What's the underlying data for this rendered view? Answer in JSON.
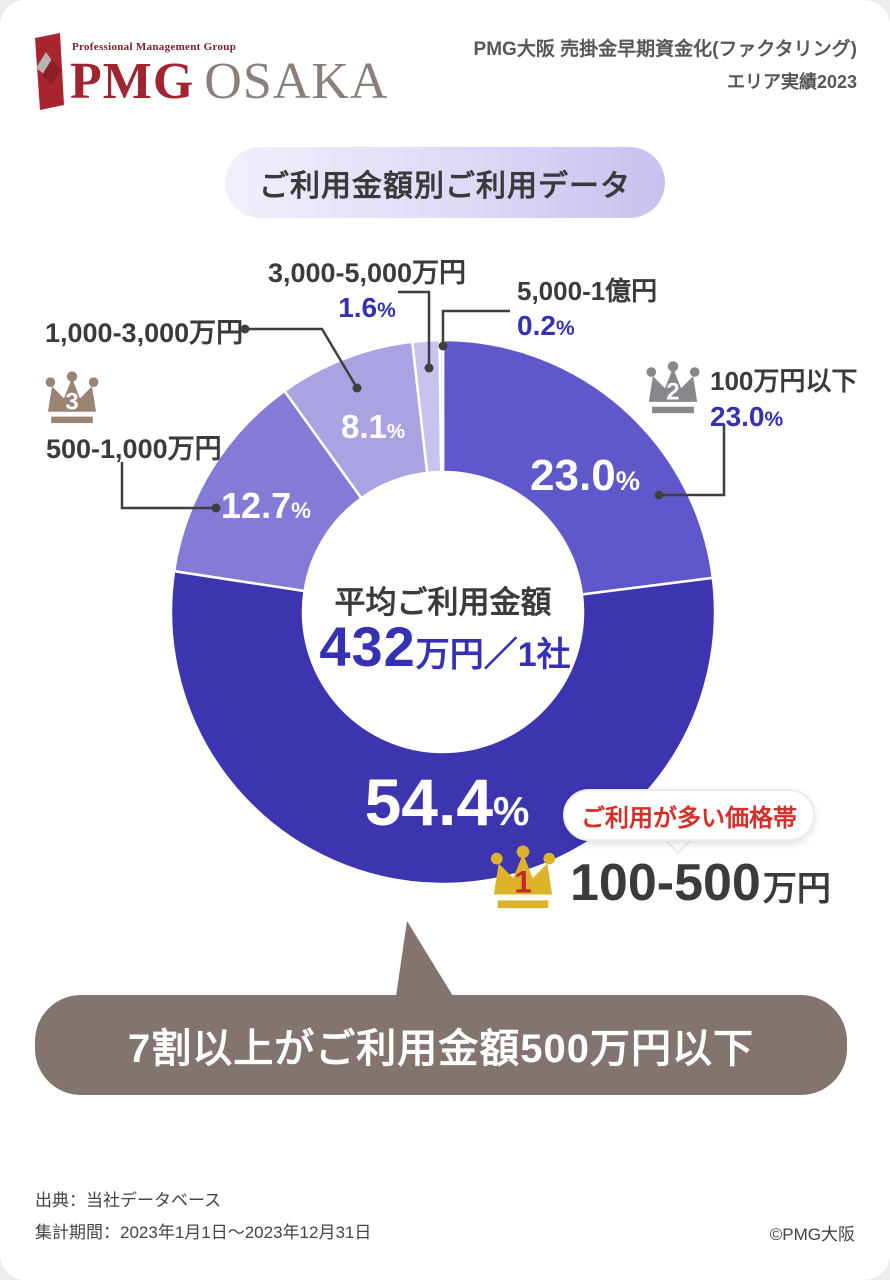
{
  "header": {
    "logo_small_text": "Professional Management Group",
    "logo_brand": "PMG",
    "logo_region": "OSAKA",
    "title_line1": "PMG大阪 売掛金早期資金化(ファクタリング)",
    "title_line2": "エリア実績2023"
  },
  "section_title": "ご利用金額別ご利用データ",
  "chart_data": {
    "type": "pie",
    "donut": true,
    "title": "ご利用金額別ご利用データ",
    "unit_sign": "%",
    "start_angle_deg": 0,
    "direction": "clockwise",
    "segments": [
      {
        "label": "100万円以下",
        "value": 23.0,
        "display": "23.0",
        "color": "#6058ca",
        "rank": "2"
      },
      {
        "label": "100-500万円",
        "value": 54.4,
        "display": "54.4",
        "color": "#3d34b0",
        "rank": "1"
      },
      {
        "label": "500-1,000万円",
        "value": 12.7,
        "display": "12.7",
        "color": "#847bd7",
        "rank": "3"
      },
      {
        "label": "1,000-3,000万円",
        "value": 8.1,
        "display": "8.1",
        "color": "#aaa3e2"
      },
      {
        "label": "3,000-5,000万円",
        "value": 1.6,
        "display": "1.6",
        "color": "#c7c3ee"
      },
      {
        "label": "5,000-1億円",
        "value": 0.2,
        "display": "0.2",
        "color": "#dfddf6"
      }
    ],
    "center_label": {
      "caption": "平均ご利用金額",
      "value": "432",
      "unit": "万円／1社"
    }
  },
  "rank1_callout": {
    "bubble_text": "ご利用が多い価格帯",
    "amount": "100-500",
    "amount_unit": "万円"
  },
  "banner_text": "7割以上がご利用金額500万円以下",
  "footer": {
    "source": "出典：当社データベース",
    "period": "集計期間：2023年1月1日～2023年12月31日",
    "copyright": "©PMG大阪"
  },
  "colors": {
    "accent_blue": "#3531b2",
    "accent_red": "#d3302c",
    "banner_bg": "#84746f",
    "crown_gold": "#ddb32b",
    "crown_silver": "#88878b",
    "crown_bronze": "#9c8475",
    "label_dark": "#3b3b3b"
  }
}
